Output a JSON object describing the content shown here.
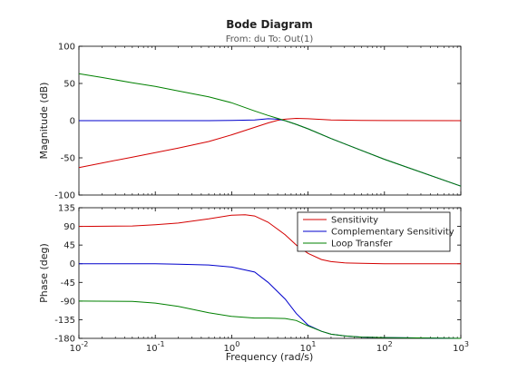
{
  "chart_data": {
    "type": "line",
    "title": "Bode Diagram",
    "subtitle": "From: du  To: Out(1)",
    "xlabel": "Frequency  (rad/s)",
    "xscale": "log",
    "xlim": [
      0.01,
      1000
    ],
    "xticks": [
      0.01,
      0.1,
      1,
      10,
      100,
      1000
    ],
    "xtick_labels": [
      {
        "base": "10",
        "exp": "-2"
      },
      {
        "base": "10",
        "exp": "-1"
      },
      {
        "base": "10",
        "exp": "0"
      },
      {
        "base": "10",
        "exp": "1"
      },
      {
        "base": "10",
        "exp": "2"
      },
      {
        "base": "10",
        "exp": "3"
      }
    ],
    "grid": false,
    "legend_position": "top-right (phase plot)",
    "colors": {
      "Sensitivity": "#d40000",
      "Complementary Sensitivity": "#0000cc",
      "Loop Transfer": "#008000"
    },
    "magnitude": {
      "ylabel": "Magnitude (dB)",
      "ylim": [
        -100,
        100
      ],
      "yticks": [
        -100,
        -50,
        0,
        50,
        100
      ],
      "ytick_labels": [
        "-100",
        "-50",
        "0",
        "50",
        "100"
      ],
      "series": [
        {
          "name": "Sensitivity",
          "color": "#d40000",
          "x": [
            0.01,
            0.02,
            0.05,
            0.1,
            0.2,
            0.5,
            1,
            2,
            3,
            4,
            5,
            7,
            10,
            20,
            50,
            100,
            1000
          ],
          "y": [
            -63,
            -57,
            -49,
            -43,
            -37,
            -28,
            -19,
            -9,
            -3,
            0.5,
            2,
            3,
            2.5,
            1,
            0.3,
            0.1,
            0
          ]
        },
        {
          "name": "Complementary Sensitivity",
          "color": "#0000cc",
          "x": [
            0.01,
            0.1,
            0.5,
            1,
            2,
            3,
            4,
            5,
            7,
            10,
            20,
            50,
            100,
            1000
          ],
          "y": [
            0,
            0,
            0,
            0.2,
            1,
            2.5,
            2,
            0,
            -5,
            -11,
            -24,
            -40,
            -52,
            -88
          ]
        },
        {
          "name": "Loop Transfer",
          "color": "#008000",
          "x": [
            0.01,
            0.02,
            0.05,
            0.1,
            0.2,
            0.5,
            1,
            2,
            3,
            4,
            5,
            7,
            10,
            20,
            50,
            100,
            1000
          ],
          "y": [
            63,
            58,
            51,
            46,
            40,
            32,
            24,
            13,
            7,
            3,
            0,
            -5,
            -11,
            -24,
            -40,
            -52,
            -88
          ]
        }
      ]
    },
    "phase": {
      "ylabel": "Phase (deg)",
      "ylim": [
        -180,
        135
      ],
      "yticks": [
        -180,
        -135,
        -90,
        -45,
        0,
        45,
        90,
        135
      ],
      "ytick_labels": [
        "-180",
        "-135",
        "-90",
        "-45",
        "0",
        "45",
        "90",
        "135"
      ],
      "series": [
        {
          "name": "Sensitivity",
          "color": "#d40000",
          "x": [
            0.01,
            0.05,
            0.1,
            0.2,
            0.5,
            1,
            1.5,
            2,
            3,
            5,
            7,
            10,
            15,
            20,
            30,
            50,
            100,
            1000
          ],
          "y": [
            90,
            91,
            94,
            98,
            108,
            117,
            118,
            115,
            100,
            70,
            45,
            25,
            10,
            5,
            2,
            1,
            0,
            0
          ]
        },
        {
          "name": "Complementary Sensitivity",
          "color": "#0000cc",
          "x": [
            0.01,
            0.1,
            0.2,
            0.5,
            1,
            2,
            3,
            5,
            7,
            10,
            15,
            20,
            30,
            50,
            100,
            1000
          ],
          "y": [
            0,
            0,
            -1,
            -3,
            -8,
            -20,
            -45,
            -85,
            -120,
            -148,
            -163,
            -170,
            -174,
            -177,
            -178,
            -180
          ]
        },
        {
          "name": "Loop Transfer",
          "color": "#008000",
          "x": [
            0.01,
            0.05,
            0.1,
            0.2,
            0.5,
            1,
            2,
            3,
            5,
            7,
            10,
            15,
            20,
            30,
            50,
            100,
            1000
          ],
          "y": [
            -90,
            -91,
            -95,
            -103,
            -118,
            -127,
            -131,
            -131,
            -132,
            -137,
            -150,
            -163,
            -170,
            -174,
            -177,
            -178,
            -180
          ]
        }
      ]
    },
    "legend": [
      "Sensitivity",
      "Complementary Sensitivity",
      "Loop Transfer"
    ]
  }
}
